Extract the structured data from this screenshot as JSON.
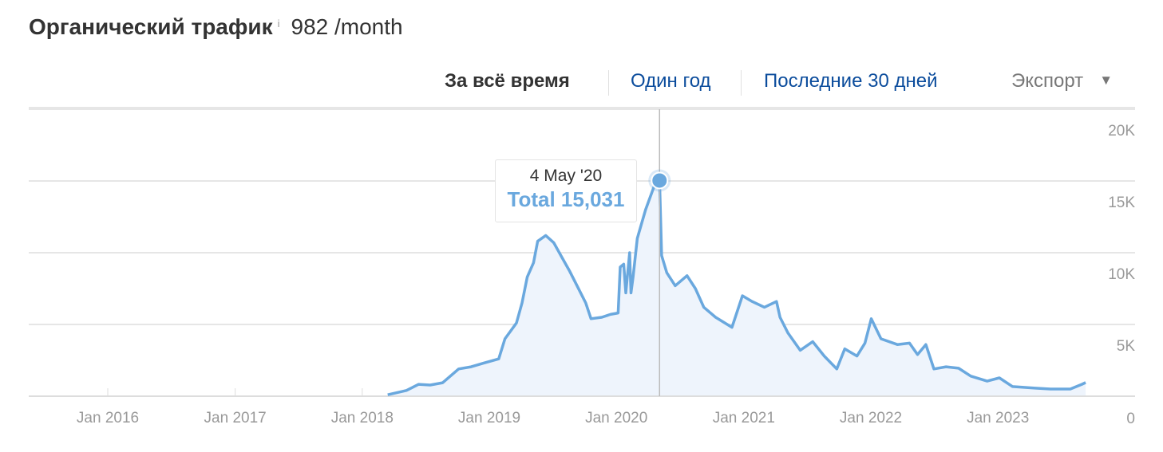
{
  "header": {
    "title": "Органический трафик",
    "info_icon": "info-icon",
    "info_glyph": "i",
    "value": "982 /month"
  },
  "toolbar": {
    "all_time": "За всё время",
    "one_year": "Один год",
    "last_30": "Последние 30 дней",
    "export": "Экспорт",
    "export_icon": "caret-down-icon",
    "caret": "▼"
  },
  "tooltip": {
    "date": "4 May '20",
    "label": "Total 15,031"
  },
  "colors": {
    "line": "#6aa8de",
    "fill": "#eef4fc",
    "link": "#0b4c9c",
    "grid": "#e6e6e6"
  },
  "chart_data": {
    "type": "area",
    "title": "",
    "xlabel": "",
    "ylabel": "",
    "xlim": [
      "2015-05-15",
      "2024-01-01"
    ],
    "ylim": [
      0,
      20000
    ],
    "grid": true,
    "x_ticks": [
      {
        "date": "2016-01-01",
        "label": "Jan 2016"
      },
      {
        "date": "2017-01-01",
        "label": "Jan 2017"
      },
      {
        "date": "2018-01-01",
        "label": "Jan 2018"
      },
      {
        "date": "2019-01-01",
        "label": "Jan 2019"
      },
      {
        "date": "2020-01-01",
        "label": "Jan 2020"
      },
      {
        "date": "2021-01-01",
        "label": "Jan 2021"
      },
      {
        "date": "2022-01-01",
        "label": "Jan 2022"
      },
      {
        "date": "2023-01-01",
        "label": "Jan 2023"
      }
    ],
    "y_ticks": [
      {
        "value": 0,
        "label": "0"
      },
      {
        "value": 5000,
        "label": "5K"
      },
      {
        "value": 10000,
        "label": "10K"
      },
      {
        "value": 15000,
        "label": "15K"
      },
      {
        "value": 20000,
        "label": "20K"
      }
    ],
    "highlight": {
      "date": "2020-05-04",
      "value": 15031
    },
    "series": [
      {
        "points": [
          [
            "2018-03-15",
            100
          ],
          [
            "2018-05-08",
            400
          ],
          [
            "2018-06-12",
            830
          ],
          [
            "2018-07-15",
            780
          ],
          [
            "2018-08-20",
            940
          ],
          [
            "2018-10-05",
            1900
          ],
          [
            "2018-11-10",
            2050
          ],
          [
            "2018-12-15",
            2300
          ],
          [
            "2019-01-28",
            2600
          ],
          [
            "2019-02-15",
            4000
          ],
          [
            "2019-03-20",
            5100
          ],
          [
            "2019-04-05",
            6500
          ],
          [
            "2019-04-20",
            8300
          ],
          [
            "2019-05-08",
            9300
          ],
          [
            "2019-05-20",
            10800
          ],
          [
            "2019-06-12",
            11200
          ],
          [
            "2019-07-05",
            10700
          ],
          [
            "2019-07-28",
            9700
          ],
          [
            "2019-08-20",
            8700
          ],
          [
            "2019-09-12",
            7600
          ],
          [
            "2019-10-05",
            6500
          ],
          [
            "2019-10-20",
            5400
          ],
          [
            "2019-11-20",
            5500
          ],
          [
            "2019-12-15",
            5700
          ],
          [
            "2020-01-06",
            5800
          ],
          [
            "2020-01-12",
            9000
          ],
          [
            "2020-01-22",
            9200
          ],
          [
            "2020-01-28",
            7200
          ],
          [
            "2020-02-08",
            10000
          ],
          [
            "2020-02-12",
            7200
          ],
          [
            "2020-02-18",
            8300
          ],
          [
            "2020-03-01",
            11000
          ],
          [
            "2020-03-25",
            13000
          ],
          [
            "2020-04-18",
            14600
          ],
          [
            "2020-05-04",
            15031
          ],
          [
            "2020-05-10",
            9800
          ],
          [
            "2020-05-25",
            8600
          ],
          [
            "2020-06-18",
            7700
          ],
          [
            "2020-07-22",
            8400
          ],
          [
            "2020-08-15",
            7500
          ],
          [
            "2020-09-08",
            6200
          ],
          [
            "2020-10-12",
            5500
          ],
          [
            "2020-11-28",
            4800
          ],
          [
            "2020-12-28",
            7000
          ],
          [
            "2021-01-25",
            6600
          ],
          [
            "2021-03-01",
            6200
          ],
          [
            "2021-04-05",
            6600
          ],
          [
            "2021-04-15",
            5500
          ],
          [
            "2021-05-08",
            4400
          ],
          [
            "2021-06-12",
            3200
          ],
          [
            "2021-07-18",
            3800
          ],
          [
            "2021-08-20",
            2800
          ],
          [
            "2021-09-25",
            1900
          ],
          [
            "2021-10-18",
            3300
          ],
          [
            "2021-11-22",
            2800
          ],
          [
            "2021-12-15",
            3700
          ],
          [
            "2022-01-02",
            5400
          ],
          [
            "2022-01-30",
            4000
          ],
          [
            "2022-03-18",
            3600
          ],
          [
            "2022-04-22",
            3700
          ],
          [
            "2022-05-15",
            2900
          ],
          [
            "2022-06-08",
            3600
          ],
          [
            "2022-07-01",
            1900
          ],
          [
            "2022-08-05",
            2050
          ],
          [
            "2022-09-10",
            1950
          ],
          [
            "2022-10-15",
            1400
          ],
          [
            "2022-12-01",
            1050
          ],
          [
            "2023-01-05",
            1280
          ],
          [
            "2023-02-12",
            670
          ],
          [
            "2023-04-18",
            560
          ],
          [
            "2023-06-01",
            500
          ],
          [
            "2023-07-28",
            500
          ],
          [
            "2023-08-30",
            830
          ],
          [
            "2023-09-10",
            950
          ]
        ]
      }
    ]
  }
}
